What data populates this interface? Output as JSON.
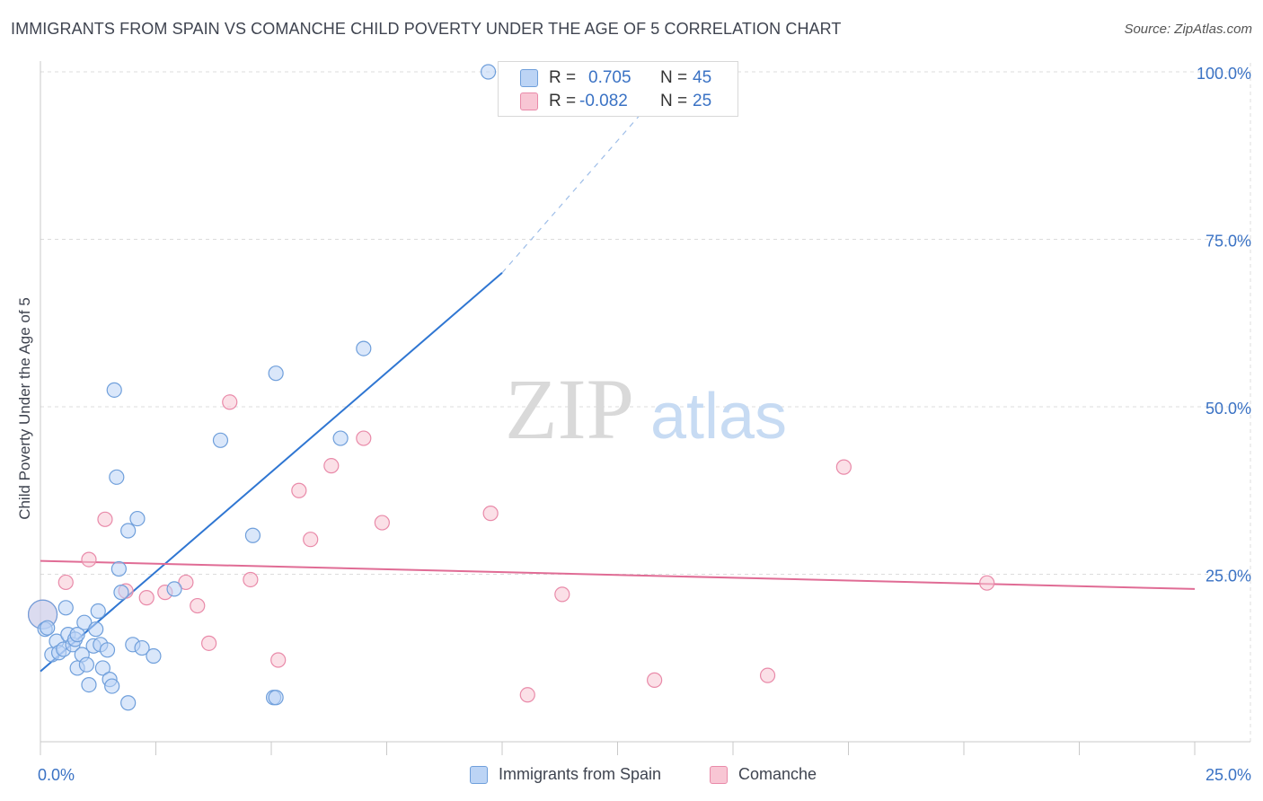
{
  "title": "IMMIGRANTS FROM SPAIN VS COMANCHE CHILD POVERTY UNDER THE AGE OF 5 CORRELATION CHART",
  "source": "Source: ZipAtlas.com",
  "watermark": {
    "zip": "ZIP",
    "atlas": "atlas"
  },
  "colors": {
    "blue_fill": "#bcd4f5",
    "blue_stroke": "#6f9fdb",
    "blue_line": "#2f76d2",
    "pink_fill": "#f8c6d4",
    "pink_stroke": "#e98aa9",
    "pink_line": "#e06c95",
    "tick_label": "#3a72c4",
    "grid": "#dcdcdc"
  },
  "stats": {
    "blue": {
      "r_label": "R =",
      "r_value": "0.705",
      "n_label": "N =",
      "n_value": "45"
    },
    "pink": {
      "r_label": "R =",
      "r_value": "-0.082",
      "n_label": "N =",
      "n_value": "25"
    }
  },
  "chart_data": {
    "type": "scatter",
    "title": "IMMIGRANTS FROM SPAIN VS COMANCHE CHILD POVERTY UNDER THE AGE OF 5 CORRELATION CHART",
    "xlabel": "",
    "ylabel": "Child Poverty Under the Age of 5",
    "xlim": [
      0,
      25
    ],
    "ylim": [
      0,
      100
    ],
    "x_tick_labels": [
      {
        "value": 0,
        "label": "0.0%"
      },
      {
        "value": 25,
        "label": "25.0%"
      }
    ],
    "y_tick_labels": [
      {
        "value": 25,
        "label": "25.0%"
      },
      {
        "value": 50,
        "label": "50.0%"
      },
      {
        "value": 75,
        "label": "75.0%"
      },
      {
        "value": 100,
        "label": "100.0%"
      }
    ],
    "x_minor_ticks": [
      0,
      2.5,
      5,
      7.5,
      10,
      12.5,
      15,
      17.5,
      20,
      22.5,
      25
    ],
    "series": [
      {
        "name": "Immigrants from Spain",
        "color": "blue",
        "trend": {
          "x0": 0,
          "y0": 10.5,
          "x1": 10,
          "y1": 70,
          "dash_to_x": 13.8,
          "dash_to_y": 100
        },
        "points": [
          {
            "x": 0.05,
            "y": 19.0,
            "big": true
          },
          {
            "x": 0.1,
            "y": 16.8
          },
          {
            "x": 0.15,
            "y": 17.0
          },
          {
            "x": 0.25,
            "y": 13.0
          },
          {
            "x": 0.35,
            "y": 15.0
          },
          {
            "x": 0.4,
            "y": 13.3
          },
          {
            "x": 0.5,
            "y": 13.8
          },
          {
            "x": 0.55,
            "y": 20.0
          },
          {
            "x": 0.6,
            "y": 16.0
          },
          {
            "x": 0.7,
            "y": 14.5
          },
          {
            "x": 0.75,
            "y": 15.3
          },
          {
            "x": 0.8,
            "y": 16.0
          },
          {
            "x": 0.8,
            "y": 11.0
          },
          {
            "x": 0.9,
            "y": 13.0
          },
          {
            "x": 0.95,
            "y": 17.8
          },
          {
            "x": 1.0,
            "y": 11.5
          },
          {
            "x": 1.05,
            "y": 8.5
          },
          {
            "x": 1.15,
            "y": 14.3
          },
          {
            "x": 1.2,
            "y": 16.8
          },
          {
            "x": 1.25,
            "y": 19.5
          },
          {
            "x": 1.3,
            "y": 14.5
          },
          {
            "x": 1.35,
            "y": 11.0
          },
          {
            "x": 1.45,
            "y": 13.7
          },
          {
            "x": 1.5,
            "y": 9.3
          },
          {
            "x": 1.55,
            "y": 8.3
          },
          {
            "x": 1.6,
            "y": 52.5
          },
          {
            "x": 1.65,
            "y": 39.5
          },
          {
            "x": 1.7,
            "y": 25.8
          },
          {
            "x": 1.75,
            "y": 22.3
          },
          {
            "x": 1.9,
            "y": 31.5
          },
          {
            "x": 1.9,
            "y": 5.8
          },
          {
            "x": 2.0,
            "y": 14.5
          },
          {
            "x": 2.1,
            "y": 33.3
          },
          {
            "x": 2.2,
            "y": 14.0
          },
          {
            "x": 2.45,
            "y": 12.8
          },
          {
            "x": 2.9,
            "y": 22.8
          },
          {
            "x": 3.9,
            "y": 45.0
          },
          {
            "x": 4.6,
            "y": 30.8
          },
          {
            "x": 5.05,
            "y": 6.6
          },
          {
            "x": 5.1,
            "y": 6.6
          },
          {
            "x": 5.1,
            "y": 55.0
          },
          {
            "x": 6.5,
            "y": 45.3
          },
          {
            "x": 7.0,
            "y": 58.7
          },
          {
            "x": 9.7,
            "y": 100.0
          }
        ]
      },
      {
        "name": "Comanche",
        "color": "pink",
        "trend": {
          "x0": 0,
          "y0": 27.0,
          "x1": 25,
          "y1": 22.8
        },
        "points": [
          {
            "x": 0.05,
            "y": 19.0,
            "big": true
          },
          {
            "x": 0.55,
            "y": 23.8
          },
          {
            "x": 1.05,
            "y": 27.2
          },
          {
            "x": 1.4,
            "y": 33.2
          },
          {
            "x": 1.85,
            "y": 22.5
          },
          {
            "x": 2.3,
            "y": 21.5
          },
          {
            "x": 2.7,
            "y": 22.3
          },
          {
            "x": 3.15,
            "y": 23.8
          },
          {
            "x": 3.4,
            "y": 20.3
          },
          {
            "x": 3.65,
            "y": 14.7
          },
          {
            "x": 4.1,
            "y": 50.7
          },
          {
            "x": 4.55,
            "y": 24.2
          },
          {
            "x": 5.15,
            "y": 12.2
          },
          {
            "x": 5.6,
            "y": 37.5
          },
          {
            "x": 5.85,
            "y": 30.2
          },
          {
            "x": 6.3,
            "y": 41.2
          },
          {
            "x": 7.0,
            "y": 45.3
          },
          {
            "x": 7.4,
            "y": 32.7
          },
          {
            "x": 9.75,
            "y": 34.1
          },
          {
            "x": 10.55,
            "y": 7.0
          },
          {
            "x": 11.3,
            "y": 22.0
          },
          {
            "x": 13.3,
            "y": 9.2
          },
          {
            "x": 15.75,
            "y": 9.9
          },
          {
            "x": 17.4,
            "y": 41.0
          },
          {
            "x": 20.5,
            "y": 23.7
          }
        ]
      }
    ]
  }
}
